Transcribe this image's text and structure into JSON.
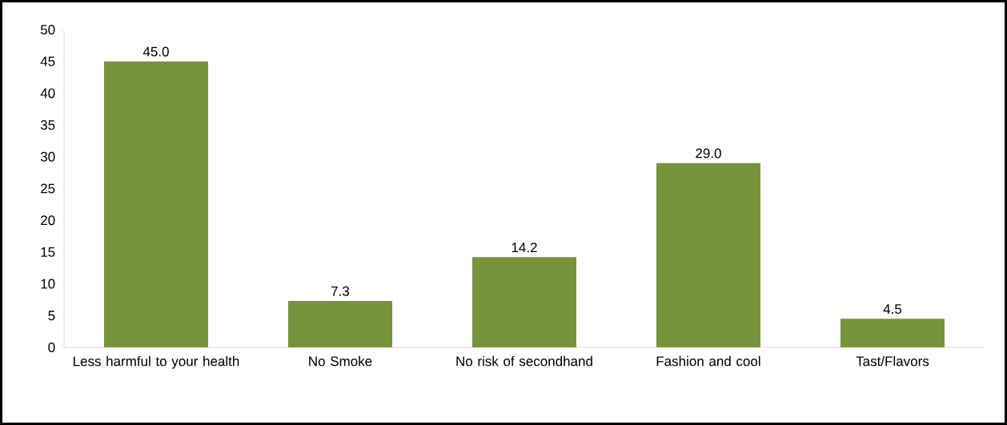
{
  "chart_data": {
    "type": "bar",
    "categories": [
      "Less harmful to your health",
      "No Smoke",
      "No risk of secondhand",
      "Fashion and cool",
      "Tast/Flavors"
    ],
    "values": [
      45.0,
      7.3,
      14.2,
      29.0,
      4.5
    ],
    "value_labels": [
      "45.0",
      "7.3",
      "14.2",
      "29.0",
      "4.5"
    ],
    "color": "#77933c",
    "ylim": [
      0,
      50
    ],
    "yticks": [
      0,
      5,
      10,
      15,
      20,
      25,
      30,
      35,
      40,
      45,
      50
    ],
    "grid": false
  }
}
